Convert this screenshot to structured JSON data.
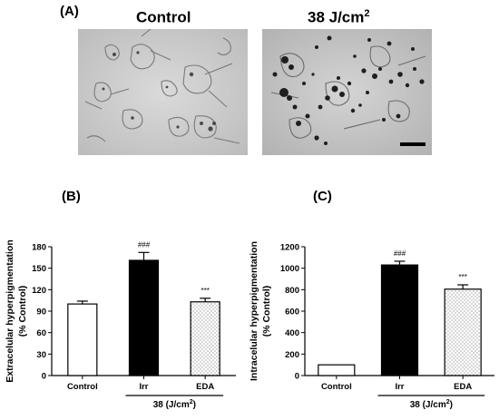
{
  "panel_a": {
    "letter": "(A)",
    "images": [
      {
        "title": "Control",
        "sup": ""
      },
      {
        "title": "38 J/cm",
        "sup": "2"
      }
    ]
  },
  "panel_b": {
    "letter": "(B)"
  },
  "panel_c": {
    "letter": "(C)"
  },
  "chart_data": [
    {
      "type": "bar",
      "panel": "B",
      "categories": [
        "Control",
        "Irr",
        "EDA"
      ],
      "values": [
        100,
        161,
        103
      ],
      "errors": [
        4,
        11,
        5
      ],
      "fills": [
        "white",
        "black",
        "dotted"
      ],
      "annotations": [
        "",
        "###",
        "***"
      ],
      "ylabel": "Extracelular hyperpigmentation",
      "ylabel2": "(% Control)",
      "ylim": [
        0,
        180
      ],
      "yticks": [
        0,
        30,
        60,
        90,
        120,
        150,
        180
      ],
      "group_label": "38 (J/cm",
      "group_label_sup": "2",
      "group_label_end": ")",
      "group_members": [
        "Irr",
        "EDA"
      ]
    },
    {
      "type": "bar",
      "panel": "C",
      "categories": [
        "Control",
        "Irr",
        "EDA"
      ],
      "values": [
        100,
        1030,
        805
      ],
      "errors": [
        0,
        35,
        40
      ],
      "fills": [
        "white",
        "black",
        "dotted"
      ],
      "annotations": [
        "",
        "###",
        "***"
      ],
      "ylabel": "Intracelular hyperpigmentation",
      "ylabel2": "(% Control)",
      "ylim": [
        0,
        1200
      ],
      "yticks": [
        0,
        200,
        400,
        600,
        800,
        1000,
        1200
      ],
      "group_label": "38 (J/cm",
      "group_label_sup": "2",
      "group_label_end": ")",
      "group_members": [
        "Irr",
        "EDA"
      ]
    }
  ]
}
